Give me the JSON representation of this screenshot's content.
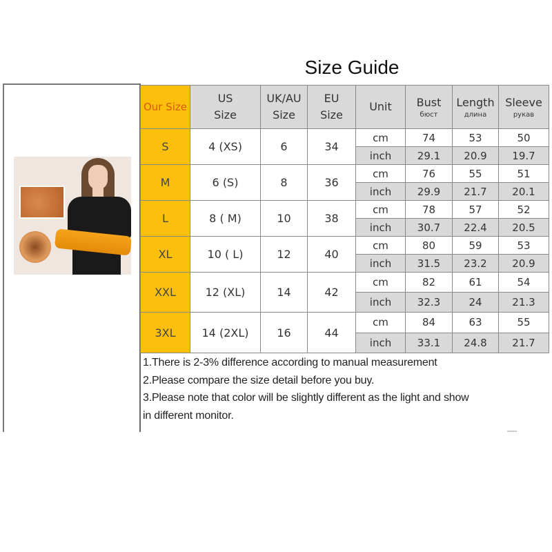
{
  "title": "Size Guide",
  "headers": {
    "our_size": "Our Size",
    "us": [
      "US",
      "Size"
    ],
    "uk": [
      "UK/AU",
      "Size"
    ],
    "eu": [
      "EU",
      "Size"
    ],
    "unit": "Unit",
    "bust": [
      "Bust",
      "бюст"
    ],
    "length": [
      "Length",
      "длина"
    ],
    "sleeve": [
      "Sleeve",
      "рукав"
    ]
  },
  "rows": [
    {
      "size": "S",
      "us": "4 (XS)",
      "uk": "6",
      "eu": "34",
      "cm": {
        "unit": "cm",
        "bust": "74",
        "length": "53",
        "sleeve": "50"
      },
      "inch": {
        "unit": "inch",
        "bust": "29.1",
        "length": "20.9",
        "sleeve": "19.7"
      }
    },
    {
      "size": "M",
      "us": "6 (S)",
      "uk": "8",
      "eu": "36",
      "cm": {
        "unit": "cm",
        "bust": "76",
        "length": "55",
        "sleeve": "51"
      },
      "inch": {
        "unit": "inch",
        "bust": "29.9",
        "length": "21.7",
        "sleeve": "20.1"
      }
    },
    {
      "size": "L",
      "us": "8 ( M)",
      "uk": "10",
      "eu": "38",
      "cm": {
        "unit": "cm",
        "bust": "78",
        "length": "57",
        "sleeve": "52"
      },
      "inch": {
        "unit": "inch",
        "bust": "30.7",
        "length": "22.4",
        "sleeve": "20.5"
      }
    },
    {
      "size": "XL",
      "us": "10 ( L)",
      "uk": "12",
      "eu": "40",
      "cm": {
        "unit": "cm",
        "bust": "80",
        "length": "59",
        "sleeve": "53"
      },
      "inch": {
        "unit": "inch",
        "bust": "31.5",
        "length": "23.2",
        "sleeve": "20.9"
      }
    },
    {
      "size": "XXL",
      "us": "12 (XL)",
      "uk": "14",
      "eu": "42",
      "cm": {
        "unit": "cm",
        "bust": "82",
        "length": "61",
        "sleeve": "54"
      },
      "inch": {
        "unit": "inch",
        "bust": "32.3",
        "length": "24",
        "sleeve": "21.3"
      }
    },
    {
      "size": "3XL",
      "us": "14 (2XL)",
      "uk": "16",
      "eu": "44",
      "cm": {
        "unit": "cm",
        "bust": "84",
        "length": "63",
        "sleeve": "55"
      },
      "inch": {
        "unit": "inch",
        "bust": "33.1",
        "length": "24.8",
        "sleeve": "21.7"
      }
    }
  ],
  "notes": [
    "1.There is 2-3% difference according to manual measurement",
    "2.Please compare the size detail before you buy.",
    "3.Please note that color will be slightly different as the light and show",
    "in different monitor."
  ],
  "colors": {
    "size_column": "#fbbf0c",
    "header_bg": "#d9d9d9",
    "our_size_text": "#d85a10"
  }
}
